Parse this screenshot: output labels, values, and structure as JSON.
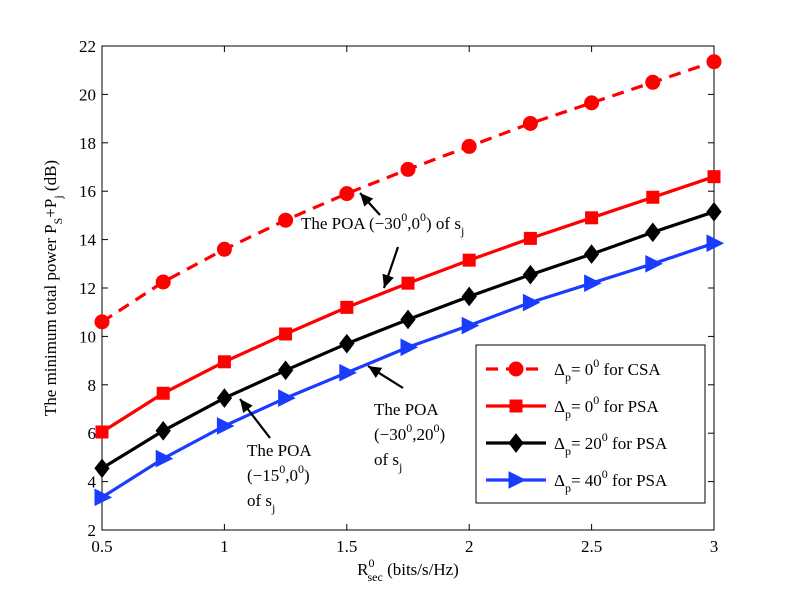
{
  "chart_data": {
    "type": "line",
    "title": "",
    "xlabel": {
      "base": "R",
      "sup": "0",
      "sub": "sec",
      "rest": " (bits/s/Hz)"
    },
    "ylabel": {
      "prefix": "The minimum total power P",
      "sub1": "S",
      "mid": "+P",
      "sub2": "j",
      "suffix": " (dB)"
    },
    "xlim": [
      0.5,
      3
    ],
    "ylim": [
      2,
      22
    ],
    "xticks": [
      "0.5",
      "1",
      "1.5",
      "2",
      "2.5",
      "3"
    ],
    "xtick_values": [
      0.5,
      1,
      1.5,
      2,
      2.5,
      3
    ],
    "yticks": [
      "2",
      "4",
      "6",
      "8",
      "10",
      "12",
      "14",
      "16",
      "18",
      "20",
      "22"
    ],
    "ytick_values": [
      2,
      4,
      6,
      8,
      10,
      12,
      14,
      16,
      18,
      20,
      22
    ],
    "grid": false,
    "legend_position": "lower-right",
    "x": [
      0.5,
      0.75,
      1,
      1.25,
      1.5,
      1.75,
      2,
      2.25,
      2.5,
      2.75,
      3
    ],
    "series": [
      {
        "name": "Δp = 0^0 for CSA",
        "label": {
          "delta": "Δ",
          "sub": "p",
          "mid": "= 0",
          "sup": "0",
          "tail": " for CSA"
        },
        "color": "#ff0000",
        "dashed": true,
        "marker": "circle",
        "values": [
          10.6,
          12.25,
          13.6,
          14.8,
          15.9,
          16.9,
          17.85,
          18.8,
          19.65,
          20.5,
          21.35
        ]
      },
      {
        "name": "Δp = 0^0 for PSA",
        "label": {
          "delta": "Δ",
          "sub": "p",
          "mid": "= 0",
          "sup": "0",
          "tail": " for PSA"
        },
        "color": "#ff0000",
        "dashed": false,
        "marker": "square",
        "values": [
          6.05,
          7.65,
          8.95,
          10.1,
          11.2,
          12.2,
          13.15,
          14.05,
          14.9,
          15.75,
          16.6
        ]
      },
      {
        "name": "Δp = 20^0 for PSA",
        "label": {
          "delta": "Δ",
          "sub": "p",
          "mid": "= 20",
          "sup": "0",
          "tail": " for PSA"
        },
        "color": "#000000",
        "dashed": false,
        "marker": "diamond",
        "values": [
          4.55,
          6.1,
          7.45,
          8.6,
          9.7,
          10.7,
          11.65,
          12.55,
          13.4,
          14.3,
          15.15
        ]
      },
      {
        "name": "Δp = 40^0 for PSA",
        "label": {
          "delta": "Δ",
          "sub": "p",
          "mid": "= 40",
          "sup": "0",
          "tail": " for PSA"
        },
        "color": "#1a3cff",
        "dashed": false,
        "marker": "triangle-right",
        "values": [
          3.35,
          4.95,
          6.3,
          7.45,
          8.5,
          9.55,
          10.45,
          11.4,
          12.2,
          13.0,
          13.85
        ]
      }
    ],
    "annotations": [
      {
        "id": "poa-30-0",
        "lines": [
          "The POA (−30",
          "0",
          ",0",
          "0",
          ") of s",
          "j"
        ]
      },
      {
        "id": "poa-15-0",
        "line1": "The POA",
        "line2": [
          "(−15",
          "0",
          ",0",
          "0",
          ")"
        ],
        "line3": [
          "of s",
          "j"
        ]
      },
      {
        "id": "poa-30-20",
        "line1": "The POA",
        "line2": [
          "(−30",
          "0",
          ",20",
          "0",
          ")"
        ],
        "line3": [
          "of s",
          "j"
        ]
      }
    ]
  }
}
